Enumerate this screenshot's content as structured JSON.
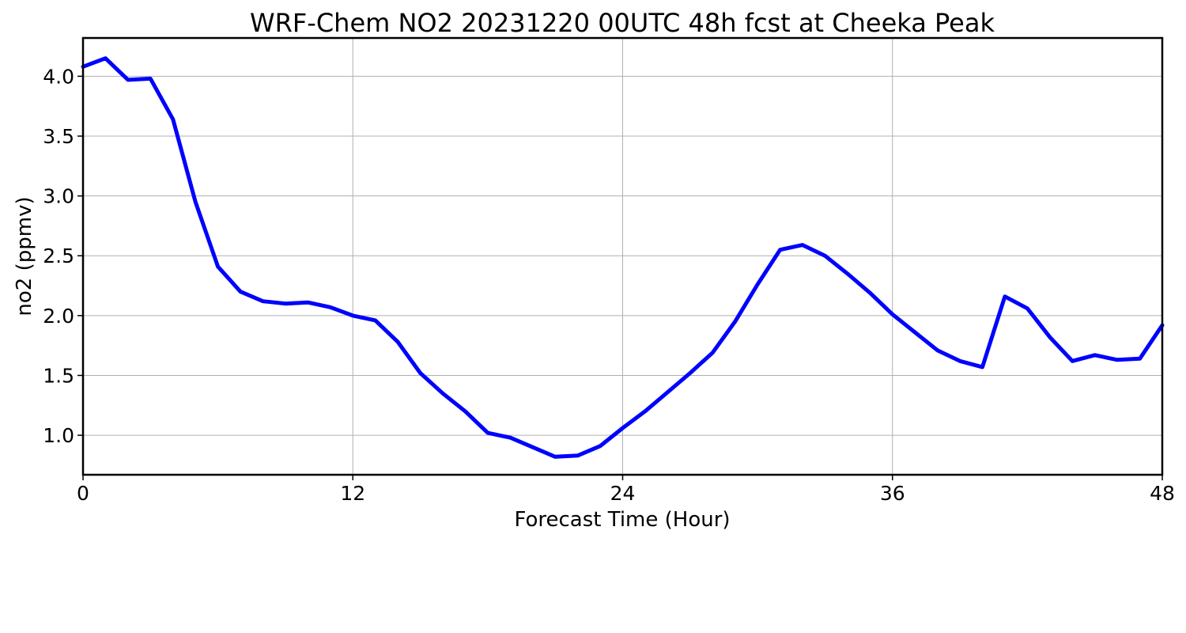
{
  "chart_data": {
    "type": "line",
    "title": "WRF-Chem NO2  20231220 00UTC 48h fcst at Cheeka Peak",
    "xlabel": "Forecast Time (Hour)",
    "ylabel": "no2  (ppmv)",
    "xlim": [
      0,
      48
    ],
    "ylim": [
      0.67,
      4.32
    ],
    "x_ticks": [
      0,
      12,
      24,
      36,
      48
    ],
    "y_ticks": [
      1.0,
      1.5,
      2.0,
      2.5,
      3.0,
      3.5,
      4.0
    ],
    "x_tick_labels": [
      "0",
      "12",
      "24",
      "36",
      "48"
    ],
    "y_tick_labels": [
      "1.0",
      "1.5",
      "2.0",
      "2.5",
      "3.0",
      "3.5",
      "4.0"
    ],
    "grid": true,
    "series": [
      {
        "color": "#0000ff",
        "x": [
          0,
          1,
          2,
          3,
          4,
          5,
          6,
          7,
          8,
          9,
          10,
          11,
          12,
          13,
          14,
          15,
          16,
          17,
          18,
          19,
          20,
          21,
          22,
          23,
          24,
          25,
          26,
          27,
          28,
          29,
          30,
          31,
          32,
          33,
          34,
          35,
          36,
          37,
          38,
          39,
          40,
          41,
          42,
          43,
          44,
          45,
          46,
          47,
          48
        ],
        "values": [
          4.08,
          4.15,
          3.97,
          3.98,
          3.64,
          2.95,
          2.41,
          2.2,
          2.12,
          2.1,
          2.11,
          2.07,
          2.0,
          1.96,
          1.78,
          1.52,
          1.35,
          1.2,
          1.02,
          0.98,
          0.9,
          0.82,
          0.83,
          0.91,
          1.06,
          1.2,
          1.36,
          1.52,
          1.69,
          1.95,
          2.26,
          2.55,
          2.59,
          2.5,
          2.35,
          2.19,
          2.01,
          1.86,
          1.71,
          1.62,
          1.57,
          2.16,
          2.06,
          1.82,
          1.62,
          1.67,
          1.63,
          1.64,
          1.92
        ]
      }
    ]
  }
}
